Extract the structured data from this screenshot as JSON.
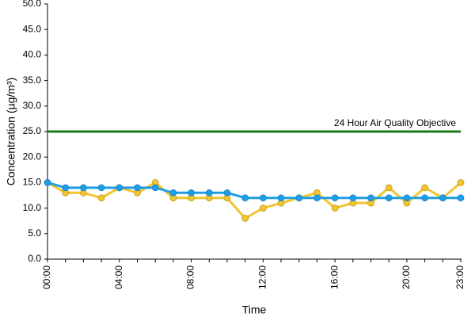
{
  "chart_data": {
    "type": "line",
    "x_label": "Time",
    "y_label": "Concentration (µg/m³)",
    "categories": [
      "00:00",
      null,
      null,
      null,
      "04:00",
      null,
      null,
      null,
      "08:00",
      null,
      null,
      null,
      "12:00",
      null,
      null,
      null,
      "16:00",
      null,
      null,
      null,
      "20:00",
      null,
      null,
      "23:00"
    ],
    "series": [
      {
        "color": "#f2c530",
        "values": [
          15,
          13,
          13,
          12,
          14,
          13,
          15,
          12,
          12,
          12,
          12,
          8,
          10,
          11,
          12,
          13,
          10,
          11,
          11,
          14,
          11,
          14,
          12,
          15
        ]
      },
      {
        "color": "#1e9ee6",
        "values": [
          15,
          14,
          14,
          14,
          14,
          14,
          14,
          13,
          13,
          13,
          13,
          12,
          12,
          12,
          12,
          12,
          12,
          12,
          12,
          12,
          12,
          12,
          12,
          12
        ]
      }
    ],
    "reference_line": {
      "value": 25,
      "label": "24 Hour Air Quality Objective",
      "color": "#1a7a1a"
    },
    "ylim": [
      0,
      50
    ],
    "yticks": [
      {
        "value": 0,
        "label": "0.0"
      },
      {
        "value": 5,
        "label": "5.0"
      },
      {
        "value": 10,
        "label": "10.0"
      },
      {
        "value": 15,
        "label": "15.0"
      },
      {
        "value": 20,
        "label": "20.0"
      },
      {
        "value": 25,
        "label": "25.0"
      },
      {
        "value": 30,
        "label": "30.0"
      },
      {
        "value": 35,
        "label": "35.0"
      },
      {
        "value": 40,
        "label": "40.0"
      },
      {
        "value": 45,
        "label": "45.0"
      },
      {
        "value": 50,
        "label": "50.0"
      }
    ]
  }
}
